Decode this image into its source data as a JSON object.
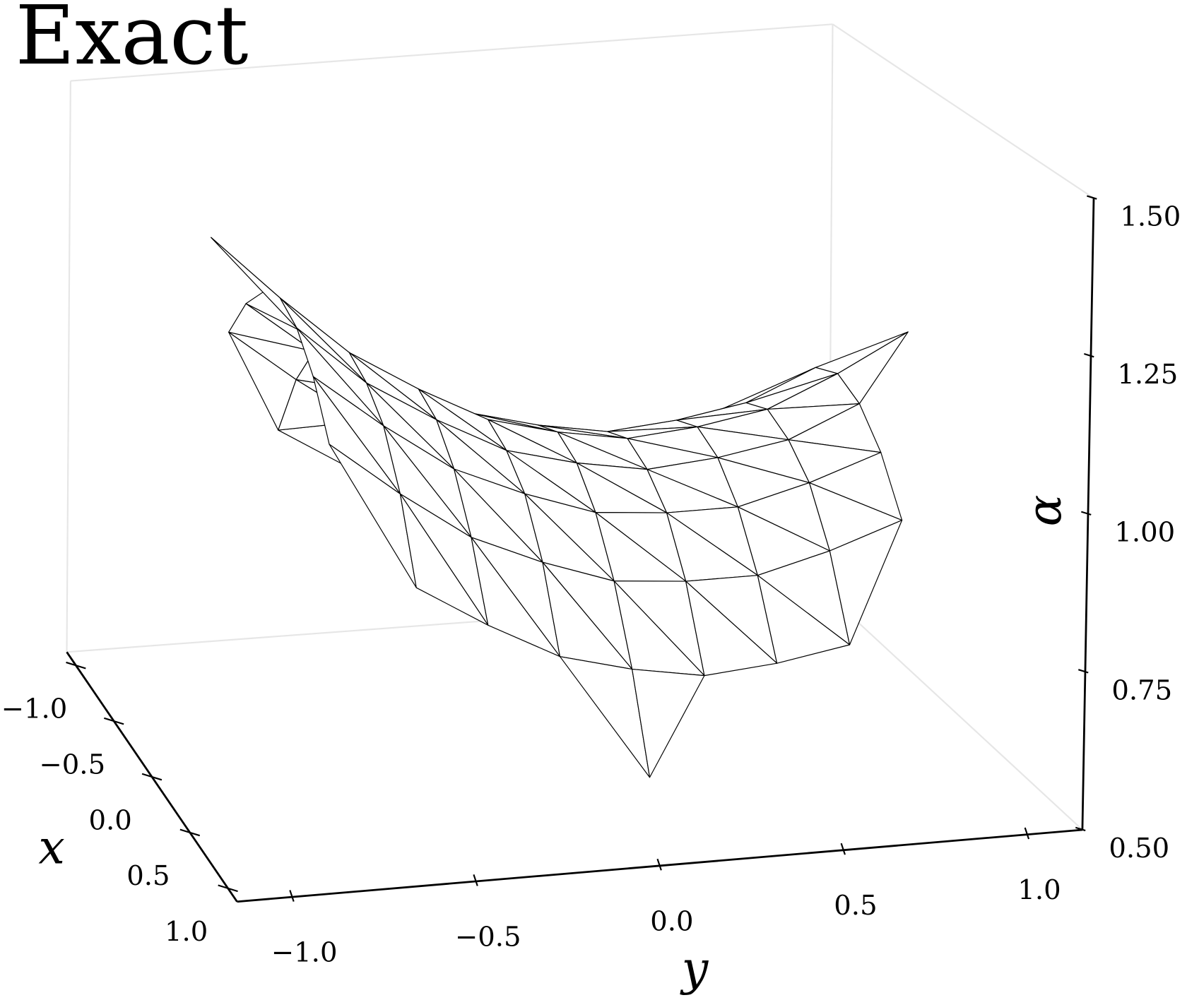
{
  "chart_data": {
    "type": "surface",
    "title": "Exact",
    "xlabel": "x",
    "ylabel": "y",
    "zlabel": "α",
    "edgecolor": "#000000",
    "facecolor": "#ffffff",
    "x": [
      -1,
      -0.8,
      -0.6,
      -0.4,
      -0.2,
      0,
      0.2,
      0.4,
      0.6,
      0.8,
      1
    ],
    "y": [
      -1,
      -0.8,
      -0.6,
      -0.4,
      -0.2,
      0,
      0.2,
      0.4,
      0.6,
      0.8,
      1
    ],
    "z": [
      [
        null,
        null,
        null,
        null,
        null,
        0.62,
        null,
        null,
        null,
        null,
        null
      ],
      [
        null,
        null,
        0.92,
        0.85,
        0.79,
        0.76,
        0.74,
        0.75,
        0.77,
        null,
        null
      ],
      [
        null,
        1.13,
        1.04,
        0.96,
        0.91,
        0.87,
        0.86,
        0.86,
        0.89,
        0.93,
        null
      ],
      [
        null,
        1.21,
        1.12,
        1.04,
        0.99,
        0.95,
        0.94,
        0.94,
        0.97,
        1.01,
        null
      ],
      [
        null,
        1.26,
        1.16,
        1.09,
        1.03,
        1.0,
        0.98,
        0.99,
        1.01,
        1.06,
        null
      ],
      [
        1.39,
        1.28,
        1.18,
        1.11,
        1.05,
        1.02,
        1.0,
        1.01,
        1.03,
        1.08,
        1.14
      ],
      [
        null,
        1.26,
        1.16,
        1.09,
        1.03,
        1.0,
        0.98,
        0.99,
        1.01,
        1.06,
        null
      ],
      [
        null,
        1.21,
        1.12,
        1.04,
        0.99,
        0.95,
        0.94,
        0.94,
        0.97,
        1.01,
        null
      ],
      [
        null,
        1.13,
        1.04,
        0.96,
        0.91,
        0.87,
        0.86,
        0.86,
        0.89,
        0.93,
        null
      ],
      [
        null,
        null,
        0.92,
        0.85,
        0.79,
        0.76,
        0.74,
        0.75,
        0.77,
        null,
        null
      ],
      [
        null,
        null,
        null,
        null,
        null,
        0.62,
        null,
        null,
        null,
        null,
        null
      ]
    ],
    "xlim": [
      -1.12,
      1.12
    ],
    "ylim": [
      -1.15,
      1.15
    ],
    "zlim": [
      0.5,
      1.5
    ],
    "xticks": [
      {
        "value": -1,
        "label": "−1.0"
      },
      {
        "value": -0.5,
        "label": "−0.5"
      },
      {
        "value": 0,
        "label": "0.0"
      },
      {
        "value": 0.5,
        "label": "0.5"
      },
      {
        "value": 1,
        "label": "1.0"
      }
    ],
    "yticks": [
      {
        "value": -1,
        "label": "−1.0"
      },
      {
        "value": -0.5,
        "label": "−0.5"
      },
      {
        "value": 0,
        "label": "0.0"
      },
      {
        "value": 0.5,
        "label": "0.5"
      },
      {
        "value": 1,
        "label": "1.0"
      }
    ],
    "zticks": [
      {
        "value": 0.5,
        "label": "0.50"
      },
      {
        "value": 0.75,
        "label": "0.75"
      },
      {
        "value": 1,
        "label": "1.00"
      },
      {
        "value": 1.25,
        "label": "1.25"
      },
      {
        "value": 1.5,
        "label": "1.50"
      }
    ]
  }
}
